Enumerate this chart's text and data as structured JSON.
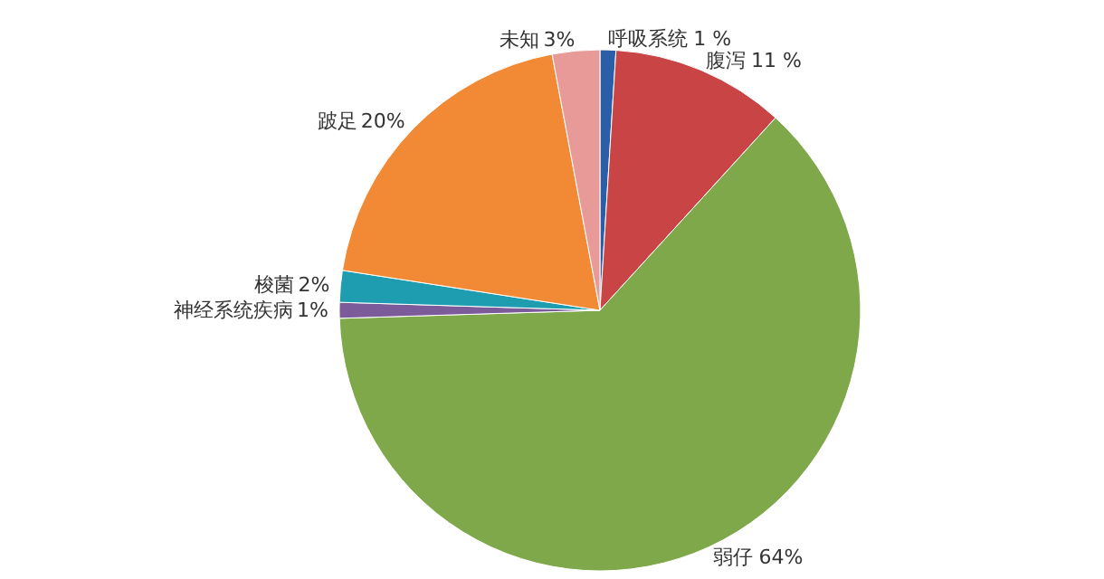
{
  "chart_data": {
    "type": "pie",
    "categories": [
      "呼吸系统",
      "腹泻",
      "弱仔",
      "神经系统疾病",
      "梭菌",
      "跛足",
      "未知"
    ],
    "values": [
      1,
      11,
      64,
      1,
      2,
      20,
      3
    ],
    "value_labels": [
      "1 %",
      "11 %",
      "64%",
      "1%",
      "2%",
      "20%",
      "3%"
    ],
    "colors": [
      "#2a5fa8",
      "#c94545",
      "#7ea84a",
      "#7b5b9a",
      "#1e9db0",
      "#f28a35",
      "#e89a98"
    ]
  }
}
